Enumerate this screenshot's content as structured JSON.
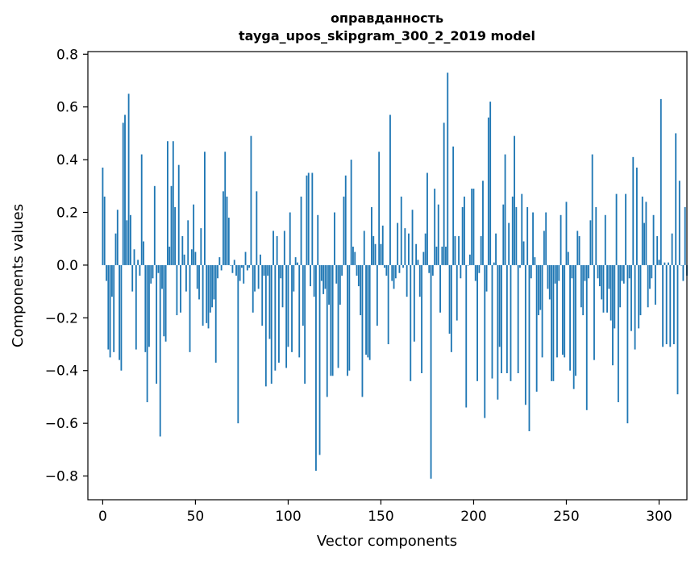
{
  "chart_data": {
    "type": "bar",
    "title_line1": "оправданность",
    "title_line2": "tayga_upos_skipgram_300_2_2019 model",
    "xlabel": "Vector components",
    "ylabel": "Components values",
    "xlim": [
      -8,
      315
    ],
    "ylim": [
      -0.89,
      0.81
    ],
    "xticks": [
      0,
      50,
      100,
      150,
      200,
      250,
      300
    ],
    "xtick_labels": [
      "0",
      "50",
      "100",
      "150",
      "200",
      "250",
      "300"
    ],
    "yticks": [
      -0.8,
      -0.6,
      -0.4,
      -0.2,
      0.0,
      0.2,
      0.4,
      0.6,
      0.8
    ],
    "ytick_labels": [
      "−0.8",
      "−0.6",
      "−0.4",
      "−0.2",
      "0.0",
      "0.2",
      "0.4",
      "0.6",
      "0.8"
    ],
    "bar_color": "#1f77b4",
    "values": [
      0.37,
      0.26,
      -0.06,
      -0.32,
      -0.35,
      -0.12,
      -0.33,
      0.12,
      0.21,
      -0.36,
      -0.4,
      0.54,
      0.57,
      0.17,
      0.65,
      0.19,
      -0.1,
      0.06,
      -0.32,
      0.02,
      -0.04,
      0.42,
      0.09,
      -0.33,
      -0.52,
      -0.31,
      -0.07,
      -0.05,
      0.3,
      -0.45,
      -0.03,
      -0.65,
      -0.09,
      -0.27,
      -0.29,
      0.47,
      0.07,
      0.3,
      0.47,
      0.22,
      -0.19,
      0.38,
      -0.18,
      0.11,
      0.04,
      -0.1,
      0.17,
      -0.33,
      0.06,
      0.23,
      0.05,
      -0.09,
      -0.13,
      0.14,
      -0.23,
      0.43,
      -0.22,
      -0.24,
      -0.18,
      -0.16,
      -0.13,
      -0.37,
      -0.05,
      0.03,
      -0.02,
      0.28,
      0.43,
      0.26,
      0.18,
      0.0,
      -0.03,
      0.02,
      -0.04,
      -0.6,
      -0.06,
      -0.01,
      -0.07,
      0.05,
      -0.02,
      -0.01,
      0.49,
      -0.18,
      -0.1,
      0.28,
      -0.09,
      0.04,
      -0.23,
      -0.04,
      -0.46,
      -0.04,
      -0.28,
      -0.45,
      0.13,
      -0.4,
      0.11,
      -0.37,
      -0.05,
      -0.16,
      0.13,
      -0.39,
      -0.31,
      0.2,
      -0.33,
      -0.1,
      0.03,
      0.01,
      -0.35,
      0.26,
      -0.23,
      -0.45,
      0.34,
      0.35,
      -0.08,
      0.35,
      -0.12,
      -0.78,
      0.19,
      -0.72,
      -0.06,
      -0.11,
      -0.09,
      -0.5,
      -0.15,
      -0.42,
      -0.42,
      0.2,
      -0.07,
      -0.39,
      -0.15,
      -0.04,
      0.26,
      0.34,
      -0.42,
      -0.4,
      0.4,
      0.07,
      0.05,
      -0.04,
      -0.08,
      -0.19,
      -0.5,
      0.13,
      -0.34,
      -0.35,
      -0.36,
      0.22,
      0.11,
      0.08,
      -0.23,
      0.43,
      0.08,
      0.15,
      -0.01,
      -0.04,
      -0.3,
      0.57,
      -0.06,
      -0.09,
      -0.05,
      0.16,
      -0.03,
      0.26,
      -0.01,
      0.14,
      -0.12,
      0.12,
      -0.44,
      0.21,
      -0.29,
      0.08,
      0.02,
      -0.12,
      -0.41,
      0.05,
      0.12,
      0.35,
      -0.03,
      -0.81,
      -0.04,
      0.29,
      0.07,
      0.23,
      -0.18,
      0.07,
      0.54,
      0.07,
      0.73,
      -0.26,
      -0.33,
      0.45,
      0.11,
      -0.21,
      0.11,
      -0.05,
      0.22,
      0.26,
      -0.54,
      0.0,
      0.04,
      0.29,
      0.29,
      -0.06,
      -0.44,
      -0.03,
      0.11,
      0.32,
      -0.58,
      -0.1,
      0.56,
      0.62,
      -0.43,
      0.01,
      0.12,
      -0.51,
      -0.31,
      -0.41,
      0.23,
      0.42,
      -0.41,
      0.16,
      -0.44,
      0.26,
      0.49,
      0.22,
      -0.41,
      -0.01,
      0.27,
      0.09,
      -0.53,
      0.22,
      -0.63,
      -0.05,
      0.2,
      0.03,
      -0.48,
      -0.19,
      -0.17,
      -0.35,
      0.13,
      0.2,
      -0.09,
      -0.13,
      -0.44,
      -0.44,
      -0.07,
      -0.35,
      -0.06,
      0.19,
      -0.34,
      -0.35,
      0.24,
      0.05,
      -0.4,
      -0.05,
      -0.47,
      -0.42,
      0.13,
      0.11,
      -0.16,
      -0.19,
      -0.06,
      -0.55,
      -0.05,
      0.17,
      0.42,
      -0.36,
      0.22,
      -0.05,
      -0.08,
      -0.13,
      -0.18,
      0.19,
      -0.18,
      -0.09,
      -0.21,
      -0.38,
      -0.24,
      0.27,
      -0.52,
      -0.16,
      -0.06,
      -0.07,
      0.27,
      -0.6,
      -0.05,
      -0.25,
      0.41,
      -0.32,
      0.37,
      -0.24,
      -0.19,
      0.26,
      0.16,
      0.24,
      -0.16,
      -0.09,
      -0.05,
      0.19,
      -0.15,
      0.11,
      0.02,
      0.63,
      -0.31,
      0.01,
      -0.3,
      0.01,
      -0.31,
      0.12,
      -0.3,
      0.5,
      -0.49,
      0.32,
      0.0,
      -0.06,
      0.22,
      -0.04
    ]
  }
}
